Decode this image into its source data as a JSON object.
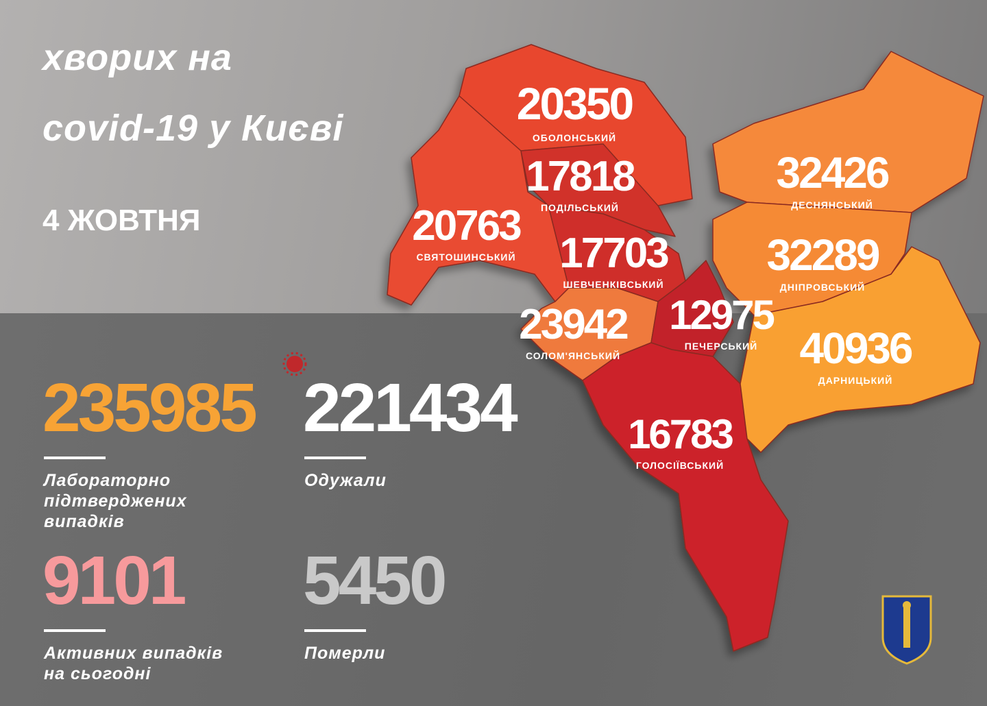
{
  "title_line1": "хворих на",
  "title_line2": "covid-19 у Києві",
  "date": "4 ЖОВТНЯ",
  "stats": {
    "confirmed": {
      "value": "235985",
      "label1": "Лабораторно",
      "label2": "підтверджених",
      "label3": "випадків",
      "color": "#f7a335"
    },
    "recovered": {
      "value": "221434",
      "label1": "Одужали",
      "color": "#ffffff"
    },
    "active": {
      "value": "9101",
      "label1": "Активних випадків",
      "label2": "на сьогодні",
      "color": "#f79a9c"
    },
    "deaths": {
      "value": "5450",
      "label1": "Померли",
      "color": "#c9c9c9"
    }
  },
  "districts": [
    {
      "name": "ОБОЛОНСЬКИЙ",
      "value": "20350",
      "color": "#e8472f"
    },
    {
      "name": "ПОДІЛЬСЬКИЙ",
      "value": "17818",
      "color": "#d1302a"
    },
    {
      "name": "СВЯТОШИНСЬКИЙ",
      "value": "20763",
      "color": "#e94b30"
    },
    {
      "name": "ШЕВЧЕНКІВСЬКИЙ",
      "value": "17703",
      "color": "#cf2f29"
    },
    {
      "name": "СОЛОМ'ЯНСЬКИЙ",
      "value": "23942",
      "color": "#ef7a3c"
    },
    {
      "name": "ПЕЧЕРСЬКИЙ",
      "value": "12975",
      "color": "#c2222a"
    },
    {
      "name": "ГОЛОСІЇВСЬКИЙ",
      "value": "16783",
      "color": "#cc2229"
    },
    {
      "name": "ДЕСНЯНСЬКИЙ",
      "value": "32426",
      "color": "#f5893a"
    },
    {
      "name": "ДНІПРОВСЬКИЙ",
      "value": "32289",
      "color": "#f58a35"
    },
    {
      "name": "ДАРНИЦЬКИЙ",
      "value": "40936",
      "color": "#f9a032"
    }
  ],
  "icons": {
    "virus": "virus-icon",
    "coat_of_arms": "kyiv-coat-of-arms"
  }
}
